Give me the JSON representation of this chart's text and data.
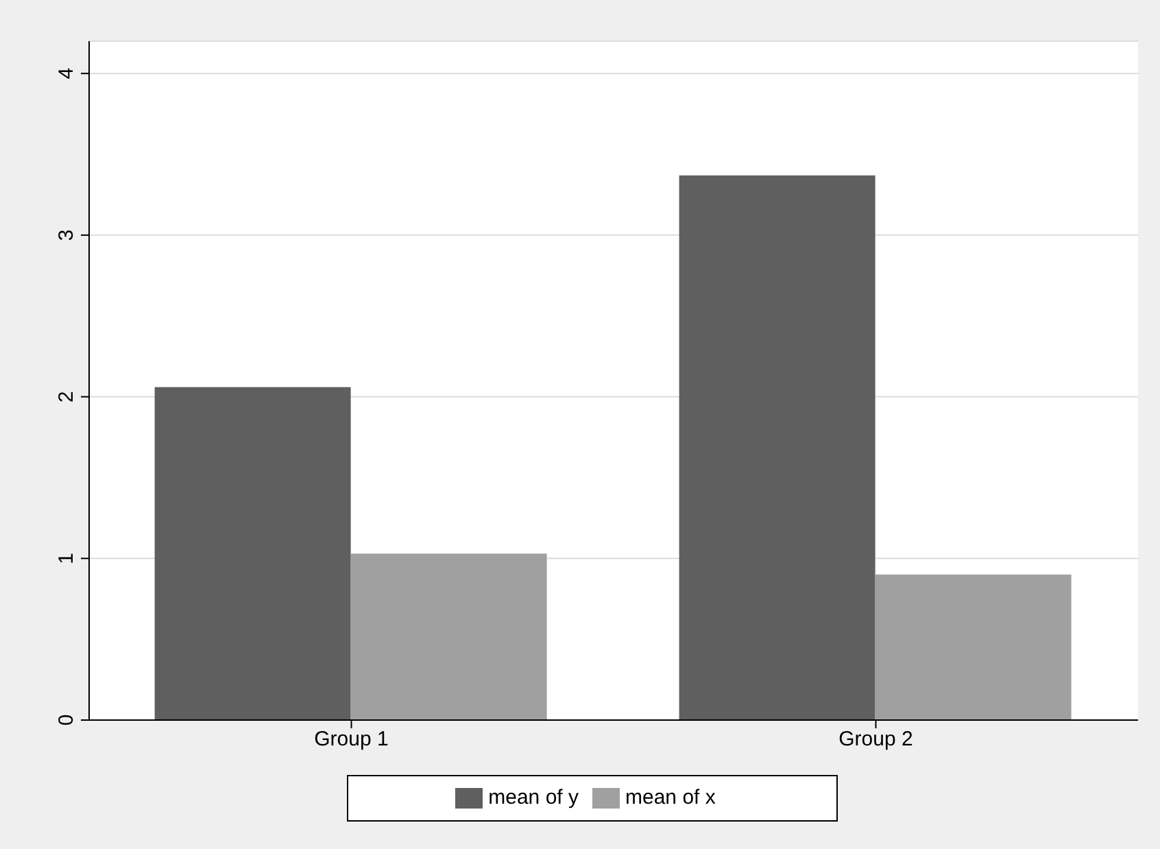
{
  "chart_data": {
    "type": "bar",
    "categories": [
      "Group 1",
      "Group 2"
    ],
    "series": [
      {
        "name": "mean of y",
        "color": "#5f5f5f",
        "values": [
          2.06,
          3.37
        ]
      },
      {
        "name": "mean of x",
        "color": "#a0a0a0",
        "values": [
          1.03,
          0.9
        ]
      }
    ],
    "ylim": [
      0,
      4.2
    ],
    "yticks": [
      0,
      1,
      2,
      3,
      4
    ],
    "grid": "y",
    "legend": "bottom"
  }
}
